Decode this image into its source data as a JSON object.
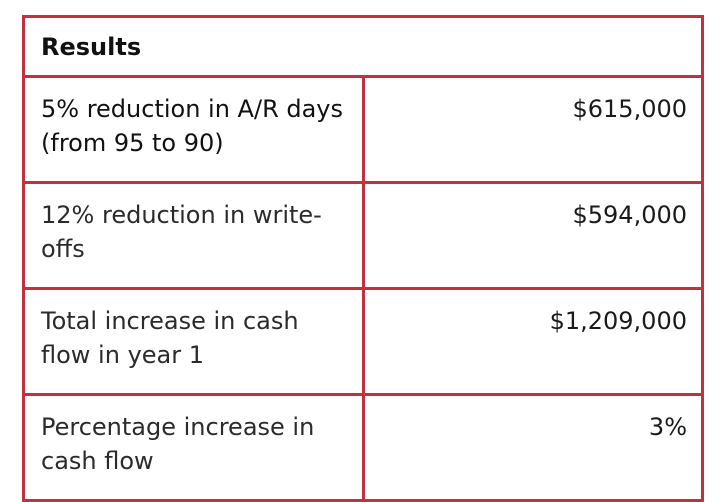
{
  "table": {
    "title": "Results",
    "rows": [
      {
        "label": "5% reduction in A/R days (from 95 to 90)",
        "value": "$615,000"
      },
      {
        "label": "12% reduction in write-offs",
        "value": "$594,000"
      },
      {
        "label": "Total increase in cash flow in year 1",
        "value": "$1,209,000"
      },
      {
        "label": "Percentage increase in cash flow",
        "value": "3%"
      }
    ]
  },
  "colors": {
    "border": "#c0323f"
  }
}
